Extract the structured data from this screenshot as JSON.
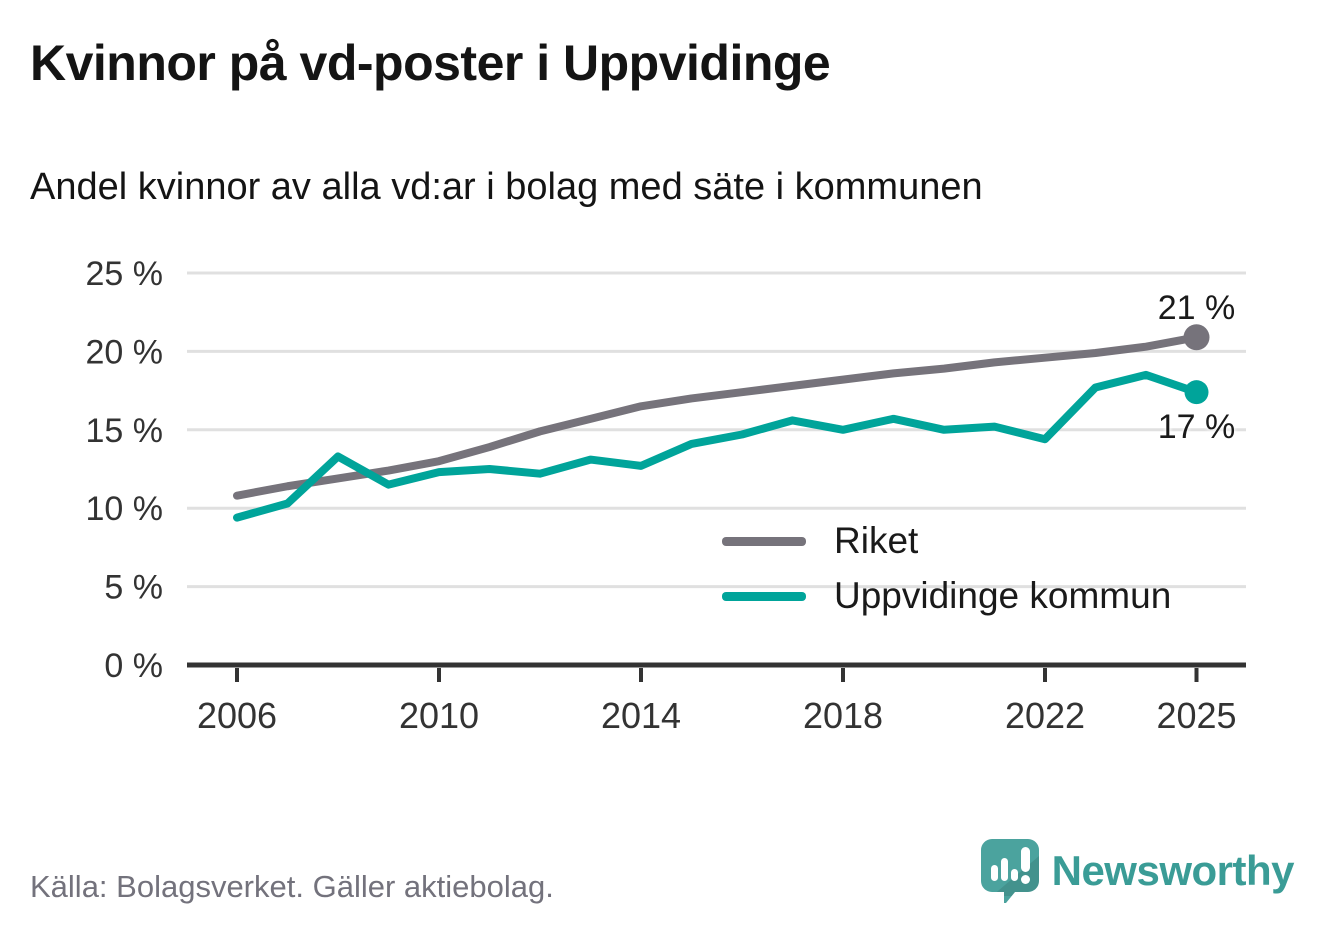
{
  "title": "Kvinnor på vd-poster i Uppvidinge",
  "subtitle": "Andel kvinnor av alla vd:ar i bolag med säte i kommunen",
  "footer": {
    "source": "Källa: Bolagsverket. Gäller aktiebolag."
  },
  "branding": {
    "name": "Newsworthy",
    "icon": "speech-bubble-bar-chart-icon",
    "brand_color": "#3A9C96"
  },
  "colors": {
    "riket_line": "#76737B",
    "uppvidinge_line": "#00A49A",
    "gridline": "#E0E0E0",
    "axis": "#333333",
    "tick_text": "#333333"
  },
  "chart_data": {
    "type": "line",
    "x": [
      2006,
      2007,
      2008,
      2009,
      2010,
      2011,
      2012,
      2013,
      2014,
      2015,
      2016,
      2017,
      2018,
      2019,
      2020,
      2021,
      2022,
      2023,
      2024,
      2025
    ],
    "series": [
      {
        "name": "Riket",
        "color": "#76737B",
        "end_label": "21 %",
        "values": [
          10.8,
          11.4,
          11.9,
          12.4,
          13.0,
          13.9,
          14.9,
          15.7,
          16.5,
          17.0,
          17.4,
          17.8,
          18.2,
          18.6,
          18.9,
          19.3,
          19.6,
          19.9,
          20.3,
          20.9
        ]
      },
      {
        "name": "Uppvidinge kommun",
        "color": "#00A49A",
        "end_label": "17 %",
        "values": [
          9.4,
          10.3,
          13.3,
          11.5,
          12.3,
          12.5,
          12.2,
          13.1,
          12.7,
          14.1,
          14.7,
          15.6,
          15.0,
          15.7,
          15.0,
          15.2,
          14.4,
          17.7,
          18.5,
          17.4
        ]
      }
    ],
    "xlabel": "",
    "ylabel": "",
    "ylim": [
      0,
      25
    ],
    "y_ticks": [
      0,
      5,
      10,
      15,
      20,
      25
    ],
    "y_tick_labels": [
      "0 %",
      "5 %",
      "10 %",
      "15 %",
      "20 %",
      "25 %"
    ],
    "x_ticks": [
      2006,
      2010,
      2014,
      2018,
      2022,
      2025
    ],
    "x_tick_labels": [
      "2006",
      "2010",
      "2014",
      "2018",
      "2022",
      "2025"
    ],
    "grid": "horizontal",
    "legend_position": "inside-bottom-right"
  }
}
